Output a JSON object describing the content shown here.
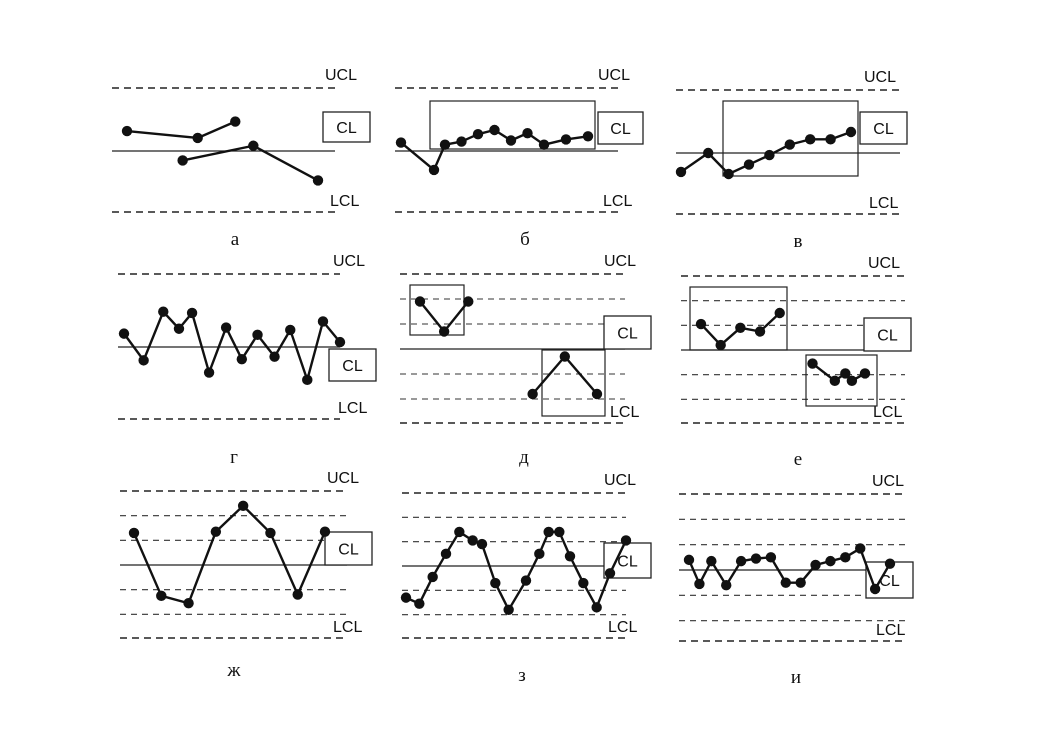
{
  "labels": {
    "ucl": "UCL",
    "cl": "CL",
    "lcl": "LCL"
  },
  "panels": [
    {
      "caption": "а",
      "series": [
        [
          0.95,
          0.58
        ],
        [
          0.62,
          1.05
        ],
        [
          1.4,
          1.3
        ],
        [
          -0.45,
          0.95
        ],
        [
          0.25,
          1.42
        ],
        [
          -1.4,
          1.85
        ]
      ],
      "gaps": [
        2
      ]
    },
    {
      "caption": "б",
      "series": [
        [
          0.4,
          1.05
        ],
        [
          -0.9,
          1.35
        ],
        [
          0.3,
          1.45
        ],
        [
          0.45,
          1.6
        ],
        [
          0.8,
          1.75
        ],
        [
          1.0,
          1.9
        ],
        [
          0.5,
          2.05
        ],
        [
          0.85,
          2.2
        ],
        [
          0.3,
          2.35
        ],
        [
          0.55,
          2.55
        ],
        [
          0.7,
          2.75
        ]
      ]
    },
    {
      "caption": "в",
      "series": [
        [
          -0.9,
          -1.1
        ],
        [
          0.0,
          -0.9
        ],
        [
          -1.0,
          -0.75
        ],
        [
          -0.55,
          -0.6
        ],
        [
          -0.1,
          -0.45
        ],
        [
          0.4,
          -0.3
        ],
        [
          0.65,
          -0.15
        ],
        [
          0.65,
          0.0
        ],
        [
          1.0,
          0.15
        ]
      ]
    },
    {
      "caption": "г",
      "series": [
        [
          0.55,
          0.1
        ],
        [
          -0.55,
          0.25
        ],
        [
          1.45,
          0.4
        ],
        [
          0.75,
          0.52
        ],
        [
          1.4,
          0.62
        ],
        [
          -1.05,
          0.75
        ],
        [
          0.8,
          0.88
        ],
        [
          -0.5,
          1.0
        ],
        [
          0.5,
          1.12
        ],
        [
          -0.4,
          1.25
        ],
        [
          0.7,
          1.37
        ],
        [
          -1.35,
          1.5
        ],
        [
          1.05,
          1.62
        ],
        [
          0.2,
          1.75
        ]
      ]
    },
    {
      "caption": "д",
      "series": [
        [
          1.9,
          0.25
        ],
        [
          0.7,
          0.4
        ],
        [
          1.9,
          0.55
        ],
        [
          -1.8,
          0.95
        ],
        [
          -0.3,
          1.15
        ],
        [
          -1.8,
          1.35
        ]
      ],
      "gaps": [
        2
      ]
    },
    {
      "caption": "е",
      "series": [
        [
          1.05,
          0.1
        ],
        [
          0.2,
          0.25
        ],
        [
          0.9,
          0.4
        ],
        [
          0.75,
          0.55
        ],
        [
          1.5,
          0.7
        ],
        [
          -0.55,
          0.95
        ],
        [
          -1.25,
          1.12
        ],
        [
          -0.95,
          1.2
        ],
        [
          -1.25,
          1.25
        ],
        [
          -0.95,
          1.35
        ]
      ],
      "gaps": [
        4
      ]
    },
    {
      "caption": "ж",
      "series": [
        [
          1.3,
          0.1
        ],
        [
          -1.25,
          0.3
        ],
        [
          -1.55,
          0.5
        ],
        [
          1.35,
          0.7
        ],
        [
          2.4,
          0.9
        ],
        [
          1.3,
          1.1
        ],
        [
          -1.2,
          1.3
        ],
        [
          1.35,
          1.5
        ]
      ]
    },
    {
      "caption": "з",
      "series": [
        [
          -1.3,
          0.05
        ],
        [
          -1.55,
          0.15
        ],
        [
          -0.45,
          0.25
        ],
        [
          0.5,
          0.35
        ],
        [
          1.4,
          0.45
        ],
        [
          1.05,
          0.55
        ],
        [
          0.9,
          0.62
        ],
        [
          -0.7,
          0.72
        ],
        [
          -1.8,
          0.82
        ],
        [
          -0.6,
          0.95
        ],
        [
          0.5,
          1.05
        ],
        [
          1.4,
          1.12
        ],
        [
          1.4,
          1.2
        ],
        [
          0.4,
          1.28
        ],
        [
          -0.7,
          1.38
        ],
        [
          -1.7,
          1.48
        ],
        [
          -0.3,
          1.58
        ],
        [
          1.05,
          1.7
        ]
      ]
    },
    {
      "caption": "и",
      "series": [
        [
          0.4,
          0.05
        ],
        [
          -0.55,
          0.12
        ],
        [
          0.35,
          0.2
        ],
        [
          -0.6,
          0.3
        ],
        [
          0.35,
          0.4
        ],
        [
          0.45,
          0.5
        ],
        [
          0.5,
          0.6
        ],
        [
          -0.5,
          0.7
        ],
        [
          -0.5,
          0.8
        ],
        [
          0.2,
          0.9
        ],
        [
          0.35,
          1.0
        ],
        [
          0.5,
          1.1
        ],
        [
          0.85,
          1.2
        ],
        [
          -0.75,
          1.3
        ],
        [
          0.25,
          1.4
        ]
      ]
    }
  ]
}
